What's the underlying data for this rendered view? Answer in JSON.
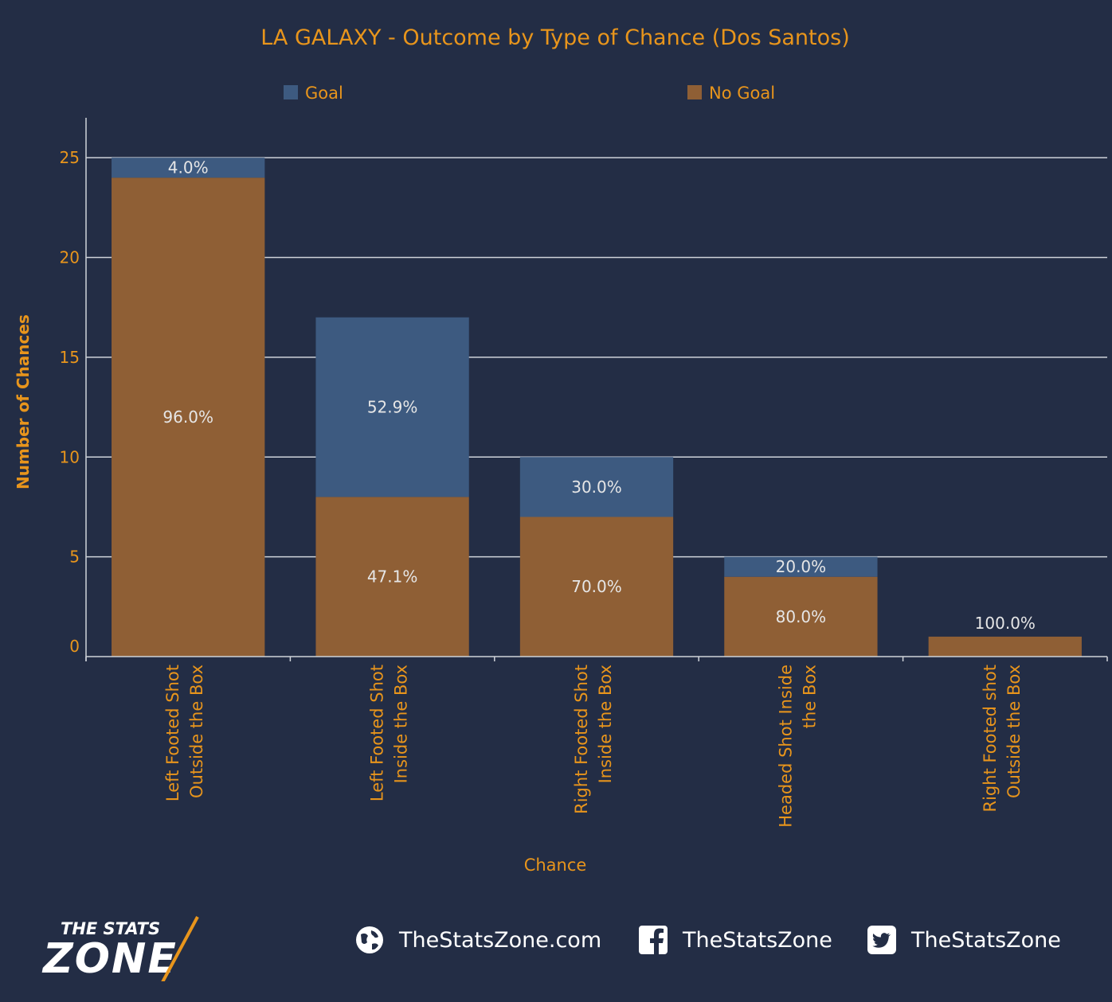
{
  "colors": {
    "background": "#232d45",
    "goal": "#3d5a80",
    "no_goal": "#8f5f35",
    "accent": "#e8951c",
    "label": "#e6e6e6",
    "grid": "#cfd3da"
  },
  "chart_data": {
    "type": "bar",
    "stacked": true,
    "title": "LA GALAXY - Outcome by Type of Chance (Dos Santos)",
    "xlabel": "Chance",
    "ylabel": "Number of Chances",
    "ylim": [
      0,
      27
    ],
    "yticks": [
      0,
      5,
      10,
      15,
      20,
      25
    ],
    "grid": true,
    "legend_position": "top",
    "categories": [
      [
        "Left Footed Shot",
        "Outside the Box"
      ],
      [
        "Left Footed Shot",
        "Inside the Box"
      ],
      [
        "Right Footed Shot",
        "Inside the Box"
      ],
      [
        "Headed Shot Inside",
        "the Box"
      ],
      [
        "Right Footed shot",
        "Outside the Box"
      ]
    ],
    "series": [
      {
        "name": "No Goal",
        "color": "#8f5f35",
        "values": [
          24,
          8,
          7,
          4,
          1
        ],
        "labels": [
          "96.0%",
          "47.1%",
          "70.0%",
          "80.0%",
          "100.0%"
        ]
      },
      {
        "name": "Goal",
        "color": "#3d5a80",
        "values": [
          1,
          9,
          3,
          1,
          0
        ],
        "labels": [
          "4.0%",
          "52.9%",
          "30.0%",
          "20.0%",
          ""
        ]
      }
    ],
    "legend": [
      "Goal",
      "No Goal"
    ]
  },
  "footer": {
    "logo_top": "THE STATS",
    "logo_bottom": "ZONE",
    "website": "TheStatsZone.com",
    "facebook": "TheStatsZone",
    "twitter": "TheStatsZone",
    "icons": [
      "globe-icon",
      "facebook-icon",
      "twitter-icon"
    ]
  }
}
